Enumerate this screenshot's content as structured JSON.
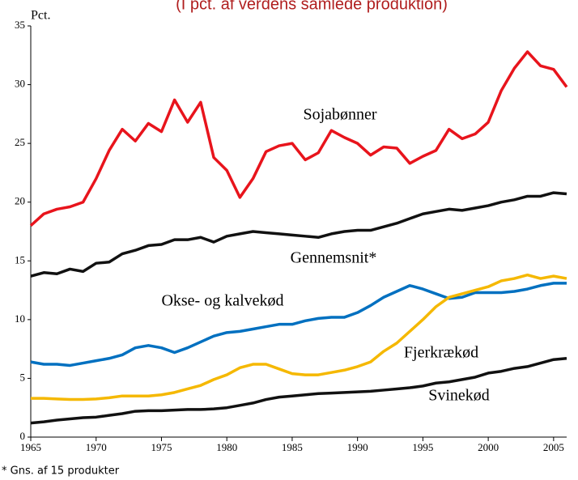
{
  "chart_data": {
    "type": "line",
    "title": "(I pct. af verdens samlede produktion)",
    "y_label": "Pct.",
    "footnote": "* Gns. af 15 produkter",
    "x": [
      1965,
      1966,
      1967,
      1968,
      1969,
      1970,
      1971,
      1972,
      1973,
      1974,
      1975,
      1976,
      1977,
      1978,
      1979,
      1980,
      1981,
      1982,
      1983,
      1984,
      1985,
      1986,
      1987,
      1988,
      1989,
      1990,
      1991,
      1992,
      1993,
      1994,
      1995,
      1996,
      1997,
      1998,
      1999,
      2000,
      2001,
      2002,
      2003,
      2004,
      2005,
      2006
    ],
    "series": [
      {
        "name": "Sojabønner",
        "color": "#e8141c",
        "values": [
          18,
          19,
          19.4,
          19.6,
          20,
          22,
          24.4,
          26.2,
          25.2,
          26.7,
          26,
          28.7,
          26.8,
          28.5,
          23.8,
          22.7,
          20.4,
          22,
          24.3,
          24.8,
          25,
          23.6,
          24.2,
          26.1,
          25.5,
          25,
          24,
          24.7,
          24.6,
          23.3,
          23.9,
          24.4,
          26.2,
          25.4,
          25.8,
          26.8,
          29.5,
          31.4,
          32.8,
          31.6,
          31.3,
          29.8
        ]
      },
      {
        "name": "Gennemsnit*",
        "color": "#111111",
        "values": [
          13.7,
          14,
          13.9,
          14.3,
          14.1,
          14.8,
          14.9,
          15.6,
          15.9,
          16.3,
          16.4,
          16.8,
          16.8,
          17,
          16.6,
          17.1,
          17.3,
          17.5,
          17.4,
          17.3,
          17.2,
          17.1,
          17,
          17.3,
          17.5,
          17.6,
          17.6,
          17.9,
          18.2,
          18.6,
          19,
          19.2,
          19.4,
          19.3,
          19.5,
          19.7,
          20,
          20.2,
          20.5,
          20.5,
          20.8,
          20.7
        ]
      },
      {
        "name": "Okse- og kalvekød",
        "color": "#0070c0",
        "values": [
          6.4,
          6.2,
          6.2,
          6.1,
          6.3,
          6.5,
          6.7,
          7,
          7.6,
          7.8,
          7.6,
          7.2,
          7.6,
          8.1,
          8.6,
          8.9,
          9,
          9.2,
          9.4,
          9.6,
          9.6,
          9.9,
          10.1,
          10.2,
          10.2,
          10.6,
          11.2,
          11.9,
          12.4,
          12.9,
          12.6,
          12.2,
          11.8,
          11.9,
          12.3,
          12.3,
          12.3,
          12.4,
          12.6,
          12.9,
          13.1,
          13.1
        ]
      },
      {
        "name": "Fjerkrækød",
        "color": "#f5b800",
        "values": [
          3.3,
          3.3,
          3.25,
          3.2,
          3.2,
          3.25,
          3.35,
          3.5,
          3.5,
          3.5,
          3.6,
          3.8,
          4.1,
          4.4,
          4.9,
          5.3,
          5.9,
          6.2,
          6.2,
          5.8,
          5.4,
          5.3,
          5.3,
          5.5,
          5.7,
          6,
          6.4,
          7.3,
          8,
          9,
          10,
          11.1,
          11.9,
          12.2,
          12.5,
          12.8,
          13.3,
          13.5,
          13.8,
          13.5,
          13.7,
          13.5
        ]
      },
      {
        "name": "Svinekød",
        "color": "#111111",
        "values": [
          1.2,
          1.3,
          1.45,
          1.55,
          1.65,
          1.7,
          1.85,
          2,
          2.2,
          2.25,
          2.25,
          2.3,
          2.35,
          2.35,
          2.4,
          2.5,
          2.7,
          2.9,
          3.2,
          3.4,
          3.5,
          3.6,
          3.7,
          3.75,
          3.8,
          3.85,
          3.9,
          4,
          4.1,
          4.2,
          4.35,
          4.6,
          4.7,
          4.9,
          5.1,
          5.45,
          5.6,
          5.85,
          6,
          6.3,
          6.6,
          6.7
        ]
      }
    ],
    "xlim": [
      1965,
      2006
    ],
    "ylim": [
      0,
      35
    ],
    "xticks": [
      1965,
      1970,
      1975,
      1980,
      1985,
      1990,
      1995,
      2000,
      2005
    ],
    "yticks": [
      0,
      5,
      10,
      15,
      20,
      25,
      30,
      35
    ],
    "grid": false
  }
}
